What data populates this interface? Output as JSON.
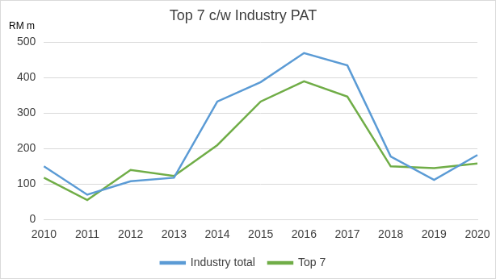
{
  "chart_data": {
    "type": "line",
    "title": "Top 7 c/w Industry PAT",
    "ylabel": "RM m",
    "categories": [
      "2010",
      "2011",
      "2012",
      "2013",
      "2014",
      "2015",
      "2016",
      "2017",
      "2018",
      "2019",
      "2020"
    ],
    "series": [
      {
        "name": "Industry total",
        "color": "#5b9bd5",
        "values": [
          150,
          70,
          108,
          118,
          333,
          388,
          470,
          435,
          178,
          112,
          182
        ]
      },
      {
        "name": "Top 7",
        "color": "#70ad47",
        "values": [
          118,
          55,
          140,
          123,
          210,
          333,
          390,
          347,
          150,
          145,
          158
        ]
      }
    ],
    "ylim": [
      0,
      500
    ],
    "yticks": [
      0,
      100,
      200,
      300,
      400,
      500
    ],
    "grid": true,
    "legend": "bottom"
  }
}
